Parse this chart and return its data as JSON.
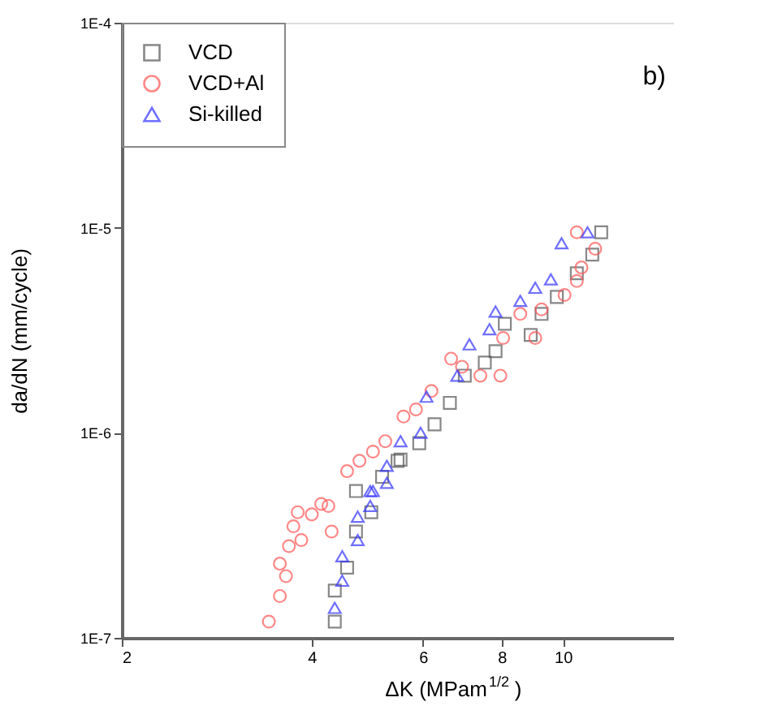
{
  "chart_data": {
    "type": "scatter",
    "xlabel": "ΔK (MPam$^{1/2}$)",
    "ylabel": "da/dN (mm/cycle)",
    "annotations": [
      "b)"
    ],
    "log": "xy",
    "grid": false,
    "legend": "top left",
    "xlim": [
      2,
      15
    ],
    "xticks": [
      2,
      4,
      6,
      8,
      10
    ],
    "ylim": [
      1e-07,
      0.0001
    ],
    "yticks": [
      {
        "value": 1e-07,
        "label": "1E-7"
      },
      {
        "value": 1e-06,
        "label": "1E-6"
      },
      {
        "value": 1e-05,
        "label": "1E-5"
      },
      {
        "value": 0.0001,
        "label": "1E-4"
      }
    ],
    "series": [
      {
        "name": "VCD",
        "color": "#555555",
        "marker": "square",
        "x": [
          4.35,
          4.35,
          4.55,
          4.7,
          4.97,
          4.7,
          5.17,
          5.47,
          5.53,
          5.92,
          6.26,
          6.62,
          6.99,
          7.52,
          7.82,
          8.09,
          8.89,
          9.25,
          9.78,
          10.52,
          11.13,
          11.5
        ],
        "values": [
          1.2e-07,
          1.7e-07,
          2.2e-07,
          3.3e-07,
          4.1e-07,
          5.2e-07,
          6.1e-07,
          7.3e-07,
          7.4e-07,
          8.9e-07,
          1.1e-06,
          1.4e-06,
          1.9e-06,
          2.2e-06,
          2.5e-06,
          3.4e-06,
          3e-06,
          3.8e-06,
          4.6e-06,
          6e-06,
          7.4e-06,
          9.5e-06
        ]
      },
      {
        "name": "VCD+Al",
        "color": "#ff5555",
        "marker": "circle",
        "x": [
          3.42,
          3.56,
          3.64,
          3.56,
          3.68,
          3.74,
          3.85,
          3.8,
          4.0,
          4.14,
          4.25,
          4.3,
          4.55,
          4.76,
          5.0,
          5.23,
          5.59,
          5.85,
          6.19,
          6.65,
          6.92,
          7.4,
          7.96,
          8.04,
          8.56,
          9.04,
          9.25,
          10.06,
          10.52,
          10.7,
          11.25,
          10.52
        ],
        "values": [
          1.2e-07,
          1.6e-07,
          2e-07,
          2.3e-07,
          2.8e-07,
          3.5e-07,
          3e-07,
          4.1e-07,
          4e-07,
          4.5e-07,
          4.4e-07,
          3.3e-07,
          6.5e-07,
          7.3e-07,
          8.1e-07,
          9.1e-07,
          1.2e-06,
          1.3e-06,
          1.6e-06,
          2.3e-06,
          2.1e-06,
          1.9e-06,
          1.9e-06,
          2.9e-06,
          3.8e-06,
          2.9e-06,
          4e-06,
          4.7e-06,
          5.5e-06,
          6.4e-06,
          7.9e-06,
          9.5e-06
        ]
      },
      {
        "name": "Si-killed",
        "color": "#3333ff",
        "marker": "triangle",
        "x": [
          4.35,
          4.47,
          4.47,
          4.73,
          4.73,
          4.95,
          4.95,
          5.26,
          5.26,
          5.0,
          5.53,
          5.95,
          6.08,
          6.8,
          7.11,
          7.65,
          7.82,
          8.56,
          9.04,
          9.57,
          9.95,
          10.94
        ],
        "values": [
          1.4e-07,
          1.9e-07,
          2.5e-07,
          3e-07,
          3.9e-07,
          4.4e-07,
          5.2e-07,
          5.7e-07,
          6.9e-07,
          5.2e-07,
          9.1e-07,
          1e-06,
          1.5e-06,
          1.9e-06,
          2.7e-06,
          3.2e-06,
          3.9e-06,
          4.4e-06,
          5.1e-06,
          5.6e-06,
          8.4e-06,
          9.5e-06
        ]
      }
    ]
  }
}
